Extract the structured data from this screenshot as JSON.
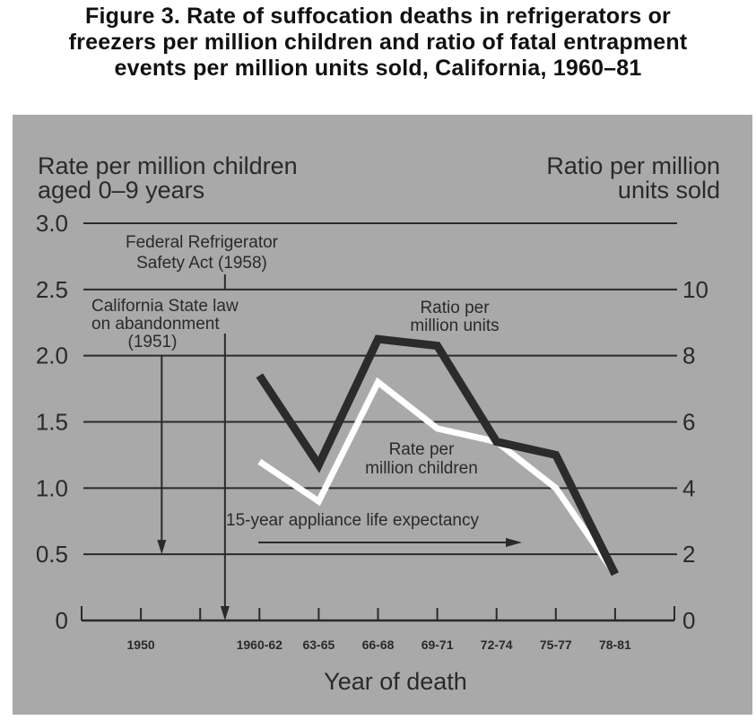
{
  "title_lines": [
    "Figure 3. Rate of suffocation deaths in refrigerators or",
    "freezers per million children and ratio of fatal entrapment",
    "events per million units sold, California, 1960–81"
  ],
  "colors": {
    "panel": "#a9a9a9",
    "ratio_line": "#2b2b2b",
    "rate_line": "#ffffff",
    "grid": "#2a2a2a"
  },
  "chart_data": {
    "type": "line",
    "title": "Figure 3. Rate of suffocation deaths in refrigerators or freezers per million children and ratio of fatal entrapment events per million units sold, California, 1960–81",
    "xlabel": "Year of death",
    "ylabel_left_lines": [
      "Rate per million children",
      "aged 0–9 years"
    ],
    "ylabel_right_lines": [
      "Ratio per million",
      "units sold"
    ],
    "x_ticks": [
      "",
      "1950",
      "",
      "1960-62",
      "63-65",
      "66-68",
      "69-71",
      "72-74",
      "75-77",
      "78-81",
      ""
    ],
    "categories": [
      "1960-62",
      "63-65",
      "66-68",
      "69-71",
      "72-74",
      "75-77",
      "78-81"
    ],
    "y_left": {
      "ylim": [
        0,
        3.0
      ],
      "ticks": [
        "0",
        "0.5",
        "1.0",
        "1.5",
        "2.0",
        "2.5",
        "3.0"
      ]
    },
    "y_right": {
      "ylim": [
        0,
        12
      ],
      "ticks": [
        "0",
        "2",
        "4",
        "6",
        "8",
        "10"
      ]
    },
    "grid": true,
    "series": [
      {
        "name": "Ratio per million units",
        "label_lines": [
          "Ratio per",
          "million units"
        ],
        "axis": "right",
        "color": "#2b2b2b",
        "values": [
          7.4,
          4.7,
          8.5,
          8.3,
          5.4,
          5.0,
          1.4
        ]
      },
      {
        "name": "Rate per million children",
        "label_lines": [
          "Rate per",
          "million children"
        ],
        "axis": "left",
        "color": "#ffffff",
        "values": [
          1.2,
          0.9,
          1.8,
          1.45,
          1.35,
          1.0,
          0.35
        ]
      }
    ],
    "annotations": [
      {
        "id": "federal",
        "lines": [
          "Federal Refrigerator",
          "Safety Act (1958)"
        ],
        "year": 1958
      },
      {
        "id": "california",
        "lines": [
          "California State law",
          "on abandonment",
          "(1951)"
        ],
        "year": 1951
      },
      {
        "id": "lifespan",
        "lines": [
          "15-year appliance life expectancy"
        ]
      }
    ]
  }
}
